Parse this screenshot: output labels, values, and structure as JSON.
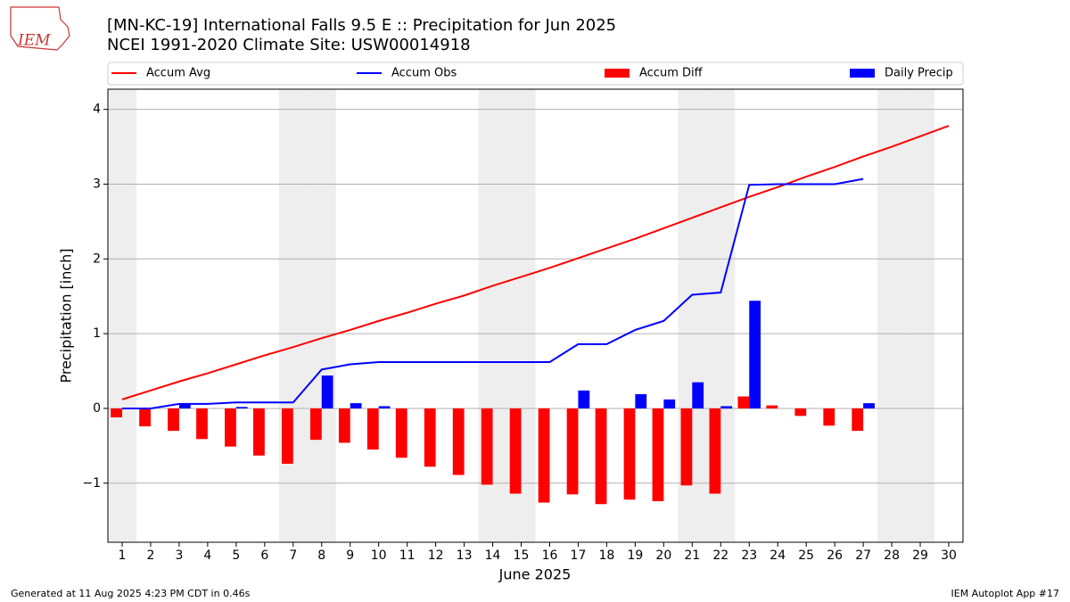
{
  "logo": "IEM",
  "footer_left": "Generated at 11 Aug 2025 4:23 PM CDT in 0.46s",
  "footer_right": "IEM Autoplot App #17",
  "chart_data": {
    "type": "combo",
    "title": "[MN-KC-19] International Falls 9.5 E :: Precipitation for Jun 2025",
    "subtitle": "NCEI 1991-2020 Climate Site: USW00014918",
    "x_label": "June 2025",
    "y_label": "Precipitation [inch]",
    "x": [
      1,
      2,
      3,
      4,
      5,
      6,
      7,
      8,
      9,
      10,
      11,
      12,
      13,
      14,
      15,
      16,
      17,
      18,
      19,
      20,
      21,
      22,
      23,
      24,
      25,
      26,
      27,
      28,
      29,
      30
    ],
    "xlim": [
      0.5,
      30.5
    ],
    "xticks": [
      1,
      2,
      3,
      4,
      5,
      6,
      7,
      8,
      9,
      10,
      11,
      12,
      13,
      14,
      15,
      16,
      17,
      18,
      19,
      20,
      21,
      22,
      23,
      24,
      25,
      26,
      27,
      28,
      29,
      30
    ],
    "ylim": [
      -1.79,
      4.27
    ],
    "yticks": [
      {
        "value": -1,
        "label": "−1"
      },
      0,
      1,
      2,
      3,
      4
    ],
    "grid": true,
    "shaded_days": [
      1,
      7,
      8,
      14,
      15,
      21,
      22,
      28,
      29
    ],
    "series": [
      {
        "name": "Accum Avg",
        "type": "line",
        "color": "#ff0000",
        "values": [
          0.12,
          0.24,
          0.36,
          0.47,
          0.59,
          0.71,
          0.82,
          0.94,
          1.05,
          1.17,
          1.28,
          1.4,
          1.51,
          1.64,
          1.76,
          1.88,
          2.01,
          2.14,
          2.27,
          2.41,
          2.55,
          2.69,
          2.83,
          2.96,
          3.1,
          3.23,
          3.37,
          3.5,
          3.64,
          3.78
        ]
      },
      {
        "name": "Accum Obs",
        "type": "line",
        "color": "#0000ff",
        "values": [
          0,
          0,
          0.06,
          0.06,
          0.08,
          0.08,
          0.08,
          0.52,
          0.59,
          0.62,
          0.62,
          0.62,
          0.62,
          0.62,
          0.62,
          0.62,
          0.86,
          0.86,
          1.05,
          1.17,
          1.52,
          1.55,
          2.99,
          3.0,
          3.0,
          3.0,
          3.07,
          null,
          null,
          null
        ]
      },
      {
        "name": "Accum Diff",
        "type": "bar",
        "color": "#ff0000",
        "values": [
          -0.12,
          -0.24,
          -0.3,
          -0.41,
          -0.51,
          -0.63,
          -0.74,
          -0.42,
          -0.46,
          -0.55,
          -0.66,
          -0.78,
          -0.89,
          -1.02,
          -1.14,
          -1.26,
          -1.15,
          -1.28,
          -1.22,
          -1.24,
          -1.03,
          -1.14,
          0.16,
          0.04,
          -0.1,
          -0.23,
          -0.3,
          null,
          null,
          null
        ]
      },
      {
        "name": "Daily Precip",
        "type": "bar",
        "color": "#0000ff",
        "values": [
          0,
          0,
          0.06,
          0,
          0.02,
          0,
          0,
          0.44,
          0.07,
          0.03,
          0,
          0,
          0,
          0,
          0,
          0,
          0.24,
          0,
          0.19,
          0.12,
          0.35,
          0.03,
          1.44,
          0,
          0,
          0,
          0.07,
          null,
          null,
          null
        ]
      }
    ]
  }
}
